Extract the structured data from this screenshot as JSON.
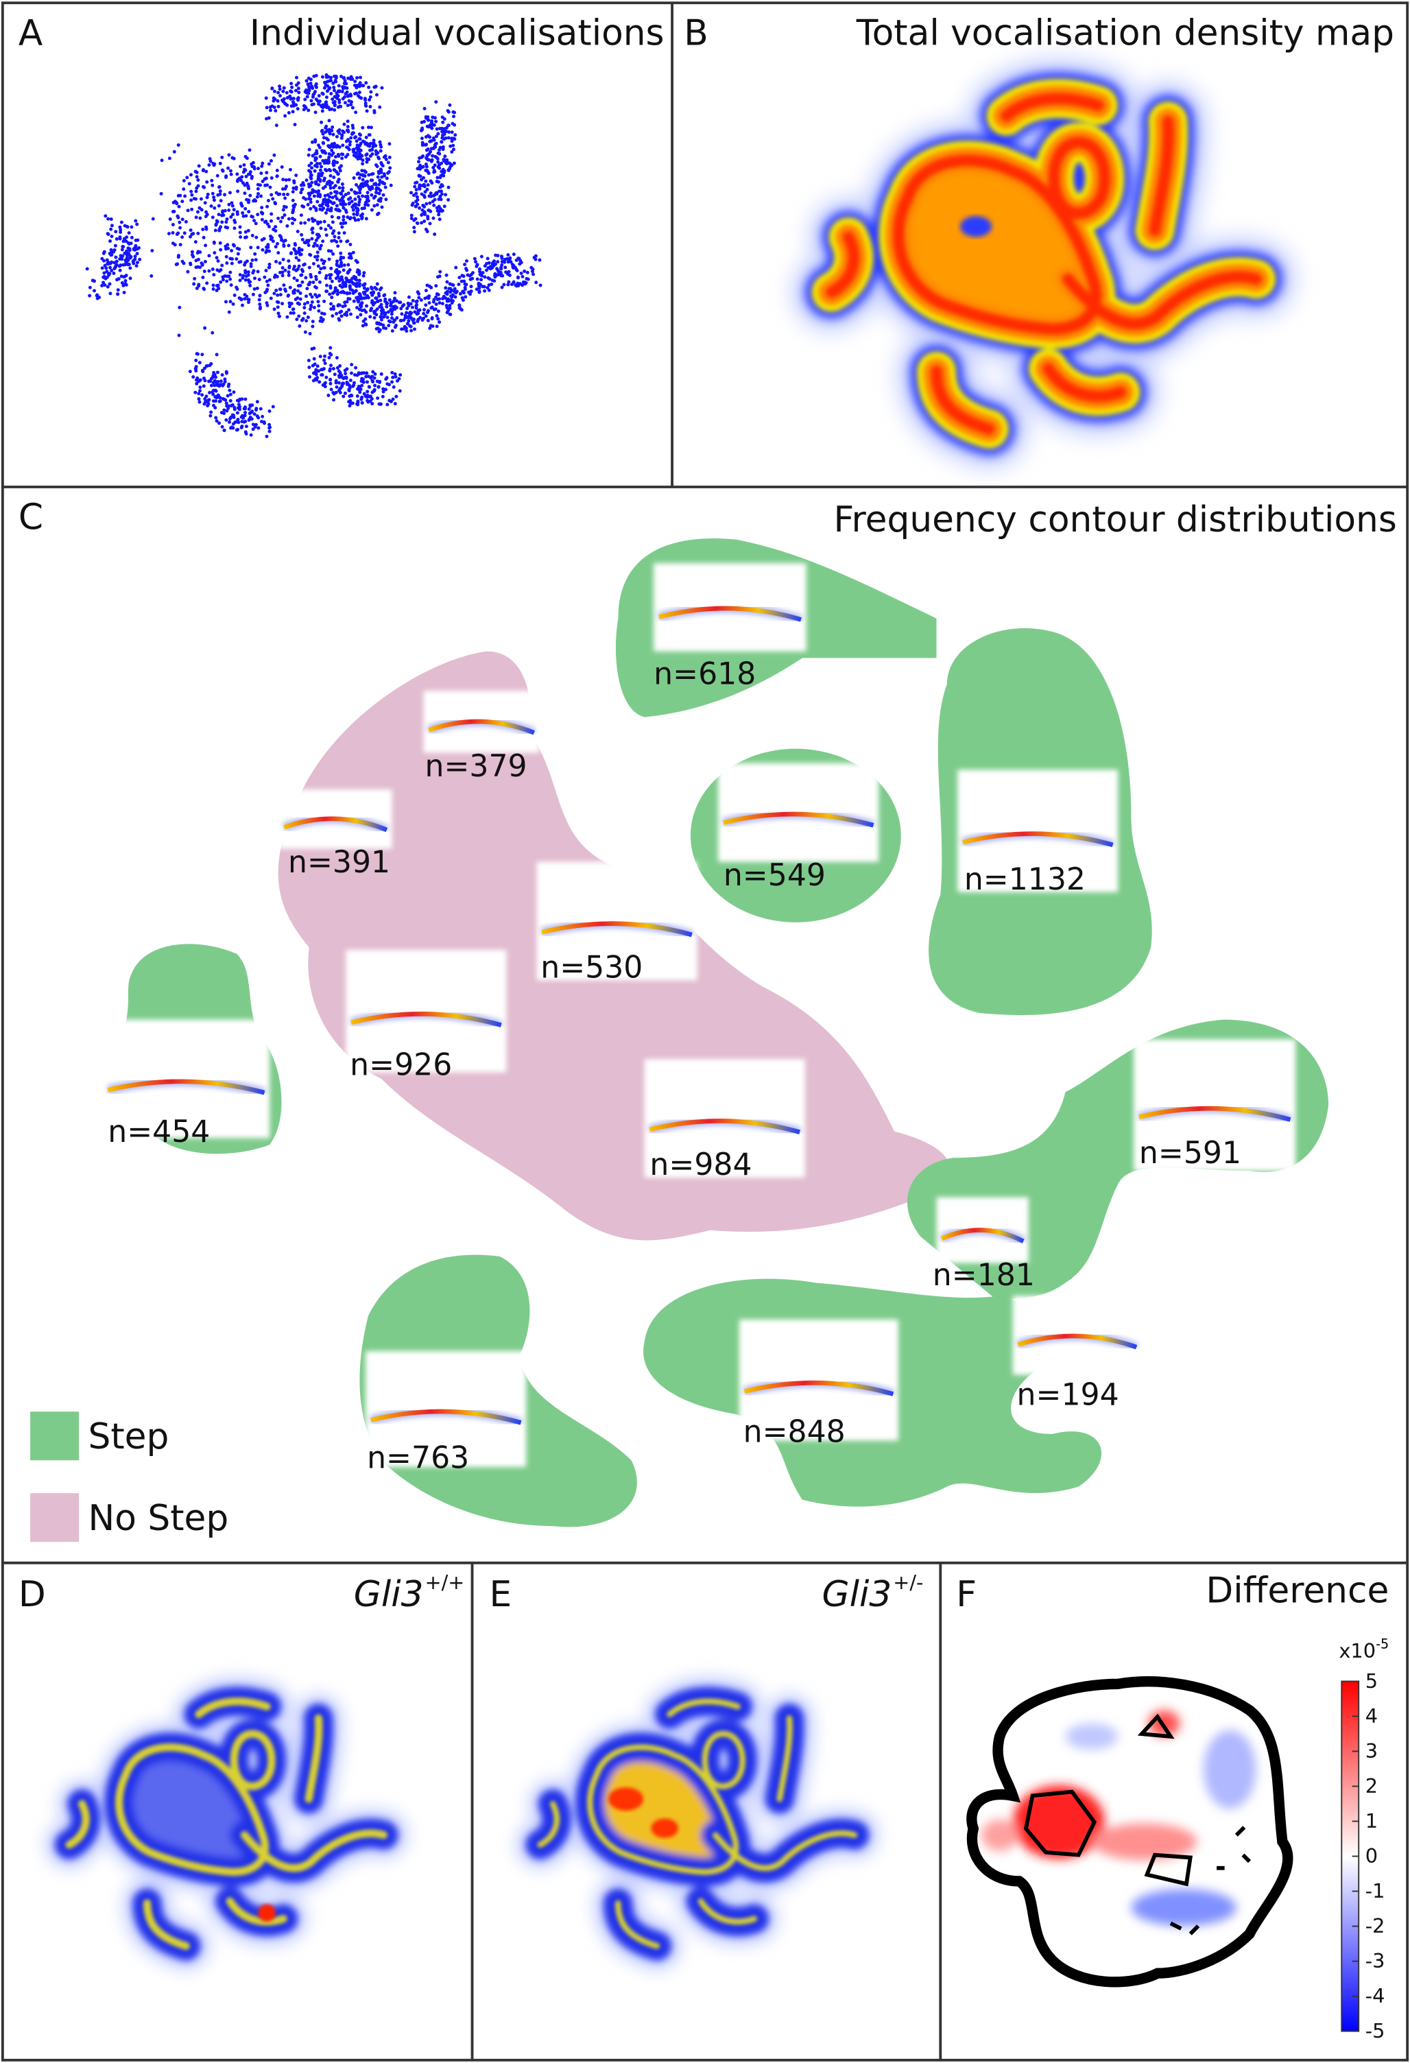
{
  "panels": {
    "A": {
      "letter": "A",
      "title": "Individual vocalisations"
    },
    "B": {
      "letter": "B",
      "title": "Total vocalisation density map"
    },
    "C": {
      "letter": "C",
      "title": "Frequency contour distributions"
    },
    "D": {
      "letter": "D",
      "gene": "Gli3",
      "genotype": "+/+"
    },
    "E": {
      "letter": "E",
      "gene": "Gli3",
      "genotype": "+/-"
    },
    "F": {
      "letter": "F",
      "title": "Difference"
    }
  },
  "clusters": [
    {
      "label": "n=618",
      "type": "Step"
    },
    {
      "label": "n=379",
      "type": "No Step"
    },
    {
      "label": "n=391",
      "type": "No Step"
    },
    {
      "label": "n=549",
      "type": "Step"
    },
    {
      "label": "n=1132",
      "type": "Step"
    },
    {
      "label": "n=530",
      "type": "No Step"
    },
    {
      "label": "n=926",
      "type": "No Step"
    },
    {
      "label": "n=454",
      "type": "Step"
    },
    {
      "label": "n=984",
      "type": "No Step"
    },
    {
      "label": "n=591",
      "type": "Step"
    },
    {
      "label": "n=181",
      "type": "Step"
    },
    {
      "label": "n=194",
      "type": "Step"
    },
    {
      "label": "n=848",
      "type": "Step"
    },
    {
      "label": "n=763",
      "type": "Step"
    }
  ],
  "legend": {
    "step": "Step",
    "no_step": "No Step",
    "step_color": "#7dcb8b",
    "no_step_color": "#e2bcd0"
  },
  "colorbar": {
    "multiplier": "x10",
    "exponent": "-5",
    "ticks": [
      "5",
      "4",
      "3",
      "2",
      "1",
      "0",
      "-1",
      "-2",
      "-3",
      "-4",
      "-5"
    ],
    "max_color": "#ff0000",
    "mid_color": "#ffffff",
    "min_color": "#0000ff"
  }
}
